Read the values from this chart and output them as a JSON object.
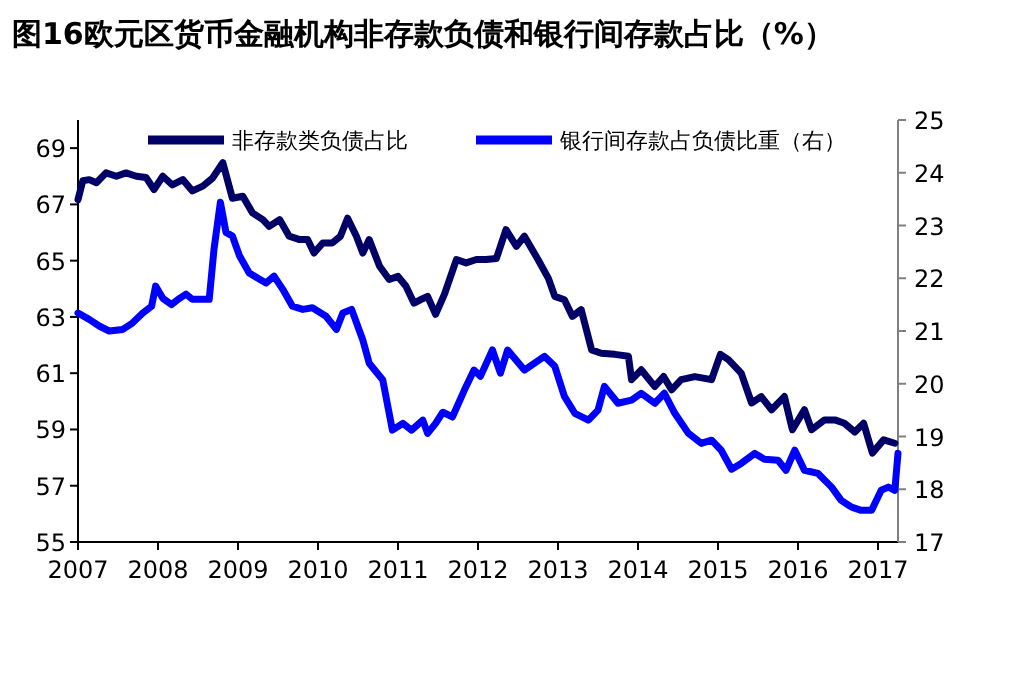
{
  "chart_data": {
    "type": "line",
    "title": "图16欧元区货币金融机构非存款负债和银行间存款占比（%）",
    "xlim": [
      2007,
      2017.25
    ],
    "xticks": [
      2007,
      2008,
      2009,
      2010,
      2011,
      2012,
      2013,
      2014,
      2015,
      2016,
      2017
    ],
    "ylim": [
      55,
      70
    ],
    "yticks": [
      55,
      57,
      59,
      61,
      63,
      65,
      67,
      69
    ],
    "y2lim": [
      17,
      25
    ],
    "y2ticks": [
      17,
      18,
      19,
      20,
      21,
      22,
      23,
      24,
      25
    ],
    "legend": "top",
    "grid": false,
    "marker": "none",
    "line_style": "solid",
    "series": [
      {
        "name": "非存款类负债占比",
        "color": "#000066",
        "x": [
          2007.0,
          2007.06,
          2007.14,
          2007.23,
          2007.35,
          2007.48,
          2007.6,
          2007.73,
          2007.85,
          2007.95,
          2008.06,
          2008.18,
          2008.31,
          2008.43,
          2008.56,
          2008.68,
          2008.81,
          2008.93,
          2009.06,
          2009.18,
          2009.31,
          2009.39,
          2009.52,
          2009.64,
          2009.77,
          2009.87,
          2009.95,
          2010.06,
          2010.18,
          2010.28,
          2010.37,
          2010.48,
          2010.56,
          2010.64,
          2010.77,
          2010.89,
          2011.0,
          2011.1,
          2011.2,
          2011.28,
          2011.37,
          2011.47,
          2011.58,
          2011.73,
          2011.85,
          2011.98,
          2012.1,
          2012.23,
          2012.35,
          2012.48,
          2012.58,
          2012.75,
          2012.88,
          2012.96,
          2013.08,
          2013.18,
          2013.29,
          2013.42,
          2013.54,
          2013.71,
          2013.88,
          2013.92,
          2014.04,
          2014.21,
          2014.32,
          2014.42,
          2014.54,
          2014.71,
          2014.92,
          2015.03,
          2015.13,
          2015.29,
          2015.42,
          2015.54,
          2015.67,
          2015.83,
          2015.93,
          2016.08,
          2016.17,
          2016.33,
          2016.46,
          2016.58,
          2016.71,
          2016.82,
          2016.93,
          2017.07,
          2017.21
        ],
        "values": [
          67.17,
          67.84,
          67.88,
          67.77,
          68.12,
          68.0,
          68.12,
          68.0,
          67.96,
          67.53,
          68.0,
          67.69,
          67.88,
          67.48,
          67.65,
          67.93,
          68.48,
          67.22,
          67.29,
          66.7,
          66.46,
          66.22,
          66.46,
          65.87,
          65.75,
          65.75,
          65.27,
          65.63,
          65.63,
          65.87,
          66.51,
          65.87,
          65.27,
          65.75,
          64.8,
          64.33,
          64.44,
          64.09,
          63.49,
          63.61,
          63.73,
          63.09,
          63.8,
          65.04,
          64.92,
          65.04,
          65.04,
          65.08,
          66.1,
          65.51,
          65.87,
          65.04,
          64.37,
          63.73,
          63.61,
          63.02,
          63.26,
          61.83,
          61.71,
          61.67,
          61.6,
          60.77,
          61.12,
          60.53,
          60.88,
          60.41,
          60.77,
          60.88,
          60.77,
          61.67,
          61.48,
          61.0,
          59.94,
          60.17,
          59.7,
          60.17,
          58.99,
          59.7,
          58.99,
          59.34,
          59.34,
          59.22,
          58.91,
          59.22,
          58.16,
          58.63,
          58.51
        ]
      },
      {
        "name": "银行间存款占负债比重（右）",
        "color": "#0000ff",
        "axis": "y2",
        "x": [
          2007.0,
          2007.14,
          2007.27,
          2007.39,
          2007.56,
          2007.68,
          2007.81,
          2007.92,
          2007.97,
          2008.06,
          2008.17,
          2008.27,
          2008.35,
          2008.43,
          2008.64,
          2008.7,
          2008.78,
          2008.85,
          2008.93,
          2009.02,
          2009.14,
          2009.27,
          2009.35,
          2009.45,
          2009.56,
          2009.68,
          2009.81,
          2009.93,
          2010.1,
          2010.23,
          2010.31,
          2010.42,
          2010.56,
          2010.64,
          2010.81,
          2010.93,
          2011.06,
          2011.17,
          2011.31,
          2011.37,
          2011.47,
          2011.56,
          2011.68,
          2011.83,
          2011.95,
          2012.03,
          2012.18,
          2012.28,
          2012.37,
          2012.58,
          2012.83,
          2012.96,
          2013.08,
          2013.21,
          2013.38,
          2013.5,
          2013.58,
          2013.75,
          2013.92,
          2014.04,
          2014.21,
          2014.33,
          2014.46,
          2014.63,
          2014.79,
          2014.92,
          2015.04,
          2015.17,
          2015.29,
          2015.46,
          2015.58,
          2015.75,
          2015.85,
          2015.96,
          2016.08,
          2016.25,
          2016.42,
          2016.54,
          2016.67,
          2016.79,
          2016.92,
          2017.04,
          2017.13,
          2017.21,
          2017.25
        ],
        "values": [
          21.34,
          21.22,
          21.09,
          21.0,
          21.03,
          21.15,
          21.34,
          21.47,
          21.85,
          21.62,
          21.5,
          21.62,
          21.7,
          21.6,
          21.6,
          22.55,
          23.44,
          22.87,
          22.8,
          22.42,
          22.1,
          21.98,
          21.91,
          22.04,
          21.79,
          21.47,
          21.41,
          21.44,
          21.28,
          21.03,
          21.34,
          21.41,
          20.83,
          20.39,
          20.07,
          19.12,
          19.25,
          19.12,
          19.31,
          19.06,
          19.25,
          19.46,
          19.37,
          19.88,
          20.26,
          20.14,
          20.64,
          20.2,
          20.64,
          20.26,
          20.52,
          20.33,
          19.76,
          19.44,
          19.31,
          19.5,
          19.95,
          19.63,
          19.69,
          19.82,
          19.63,
          19.82,
          19.44,
          19.06,
          18.87,
          18.93,
          18.74,
          18.38,
          18.49,
          18.68,
          18.57,
          18.55,
          18.36,
          18.74,
          18.36,
          18.3,
          18.04,
          17.79,
          17.66,
          17.6,
          17.6,
          17.98,
          18.04,
          17.98,
          18.68
        ]
      }
    ]
  }
}
